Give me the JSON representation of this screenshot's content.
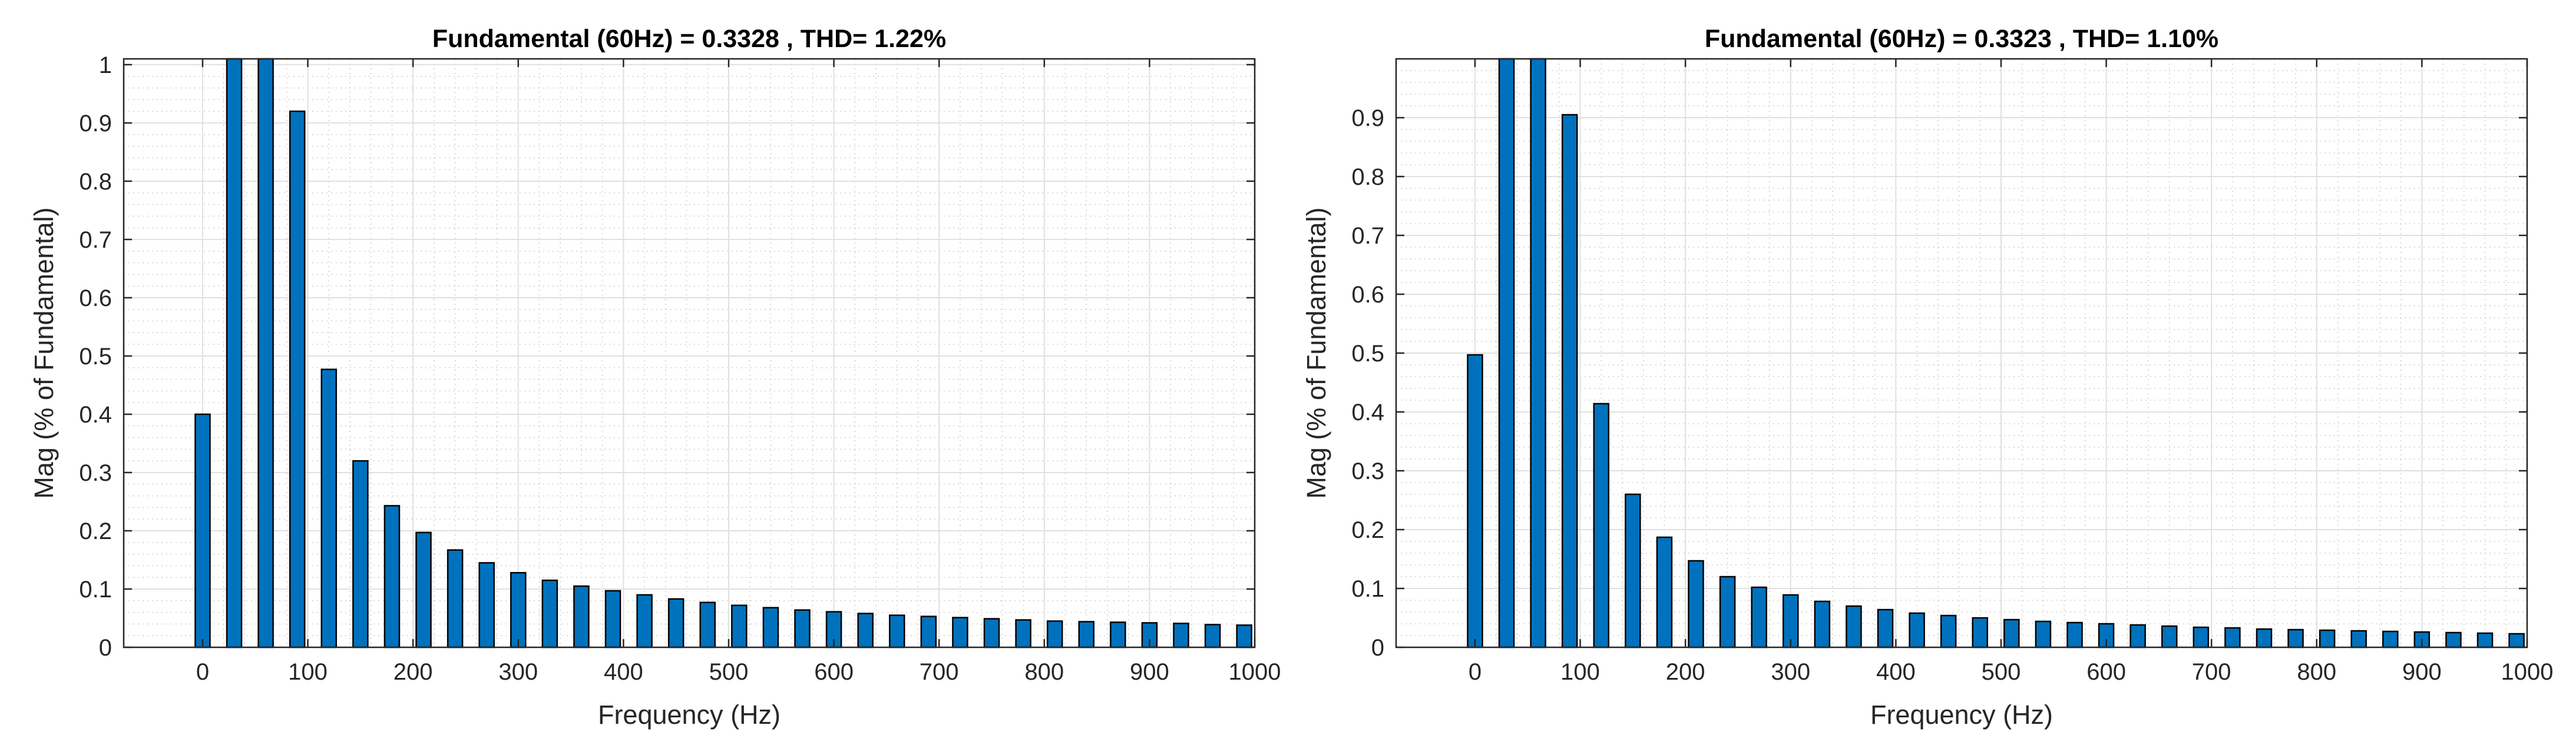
{
  "chart_data": [
    {
      "type": "bar",
      "title": "Fundamental (60Hz) = 0.3328 , THD= 1.22%",
      "xlabel": "Frequency (Hz)",
      "ylabel": "Mag (% of Fundamental)",
      "xlim": [
        -75,
        1000
      ],
      "ylim": [
        0,
        1.01
      ],
      "xticks": [
        "0",
        "100",
        "200",
        "300",
        "400",
        "500",
        "600",
        "700",
        "800",
        "900",
        "1000"
      ],
      "yticks": [
        "0",
        "0.1",
        "0.2",
        "0.3",
        "0.4",
        "0.5",
        "0.6",
        "0.7",
        "0.8",
        "0.9",
        "1"
      ],
      "grid": true,
      "bar_color": "#0072BD",
      "x": [
        0,
        30,
        60,
        90,
        120,
        150,
        180,
        210,
        240,
        270,
        300,
        330,
        360,
        390,
        420,
        450,
        480,
        510,
        540,
        570,
        600,
        630,
        660,
        690,
        720,
        750,
        780,
        810,
        840,
        870,
        900,
        930,
        960,
        990
      ],
      "values": [
        0.4,
        1.01,
        1.01,
        0.92,
        0.477,
        0.32,
        0.243,
        0.197,
        0.167,
        0.145,
        0.128,
        0.115,
        0.105,
        0.097,
        0.09,
        0.083,
        0.077,
        0.072,
        0.068,
        0.064,
        0.061,
        0.058,
        0.055,
        0.053,
        0.051,
        0.049,
        0.047,
        0.045,
        0.044,
        0.043,
        0.042,
        0.041,
        0.039,
        0.038
      ]
    },
    {
      "type": "bar",
      "title": "Fundamental (60Hz) = 0.3323 , THD= 1.10%",
      "xlabel": "Frequency (Hz)",
      "ylabel": "Mag (% of Fundamental)",
      "xlim": [
        -75,
        1000
      ],
      "ylim": [
        0,
        1.0
      ],
      "xticks": [
        "0",
        "100",
        "200",
        "300",
        "400",
        "500",
        "600",
        "700",
        "800",
        "900",
        "1000"
      ],
      "yticks": [
        "0",
        "0.1",
        "0.2",
        "0.3",
        "0.4",
        "0.5",
        "0.6",
        "0.7",
        "0.8",
        "0.9"
      ],
      "grid": true,
      "bar_color": "#0072BD",
      "x": [
        0,
        30,
        60,
        90,
        120,
        150,
        180,
        210,
        240,
        270,
        300,
        330,
        360,
        390,
        420,
        450,
        480,
        510,
        540,
        570,
        600,
        630,
        660,
        690,
        720,
        750,
        780,
        810,
        840,
        870,
        900,
        930,
        960,
        990
      ],
      "values": [
        0.497,
        1.0,
        1.0,
        0.905,
        0.414,
        0.26,
        0.187,
        0.147,
        0.12,
        0.102,
        0.089,
        0.078,
        0.07,
        0.064,
        0.058,
        0.054,
        0.05,
        0.047,
        0.044,
        0.042,
        0.04,
        0.038,
        0.036,
        0.034,
        0.033,
        0.031,
        0.03,
        0.029,
        0.028,
        0.027,
        0.026,
        0.025,
        0.024,
        0.023
      ]
    }
  ]
}
